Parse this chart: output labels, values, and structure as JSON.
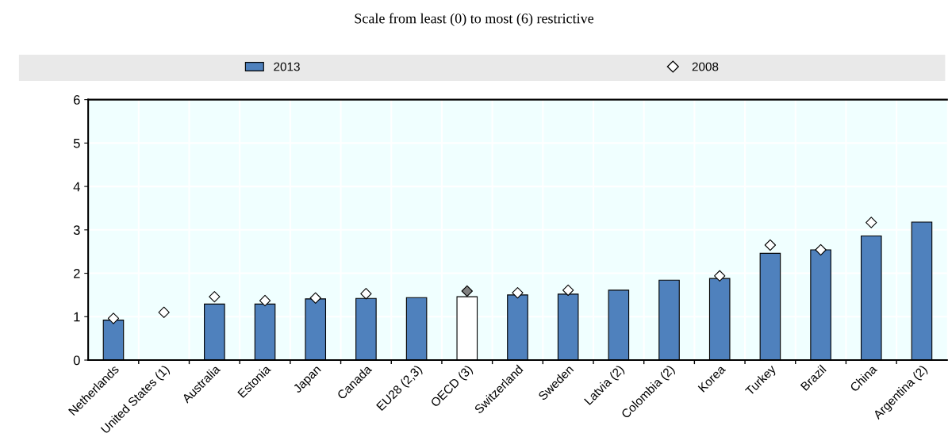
{
  "chart_data": {
    "type": "bar",
    "title": "Scale from least (0) to most (6) restrictive",
    "categories": [
      "Netherlands",
      "United States (1)",
      "Australia",
      "Estonia",
      "Japan",
      "Canada",
      "EU28 (2,3)",
      "OECD (3)",
      "Switzerland",
      "Sweden",
      "Latvia (2)",
      "Colombia (2)",
      "Korea",
      "Turkey",
      "Brazil",
      "China",
      "Argentina (2)"
    ],
    "series": [
      {
        "name": "2013",
        "color": "#4f81bd",
        "colors": [
          "#4f81bd",
          "#4f81bd",
          "#4f81bd",
          "#4f81bd",
          "#4f81bd",
          "#4f81bd",
          "#4f81bd",
          "#ffffff",
          "#4f81bd",
          "#4f81bd",
          "#4f81bd",
          "#4f81bd",
          "#4f81bd",
          "#4f81bd",
          "#4f81bd",
          "#4f81bd",
          "#4f81bd"
        ],
        "values": [
          0.92,
          null,
          1.29,
          1.29,
          1.41,
          1.42,
          1.44,
          1.46,
          1.5,
          1.52,
          1.61,
          1.84,
          1.88,
          2.46,
          2.54,
          2.86,
          3.18
        ]
      },
      {
        "name": "2008",
        "type": "scatter",
        "marker": "diamond",
        "color": "#ffffff",
        "colors": [
          "#ffffff",
          "#ffffff",
          "#ffffff",
          "#ffffff",
          "#ffffff",
          "#ffffff",
          "#ffffff",
          "#808080",
          "#ffffff",
          "#ffffff",
          "#ffffff",
          "#ffffff",
          "#ffffff",
          "#ffffff",
          "#ffffff",
          "#ffffff",
          "#ffffff"
        ],
        "values": [
          0.96,
          1.1,
          1.46,
          1.37,
          1.43,
          1.53,
          null,
          1.59,
          1.55,
          1.61,
          null,
          null,
          1.94,
          2.65,
          2.54,
          3.17,
          null
        ]
      }
    ],
    "ylim": [
      0,
      6
    ],
    "yticks": [
      0,
      1,
      2,
      3,
      4,
      5,
      6
    ],
    "grid": true,
    "legend": "top"
  }
}
